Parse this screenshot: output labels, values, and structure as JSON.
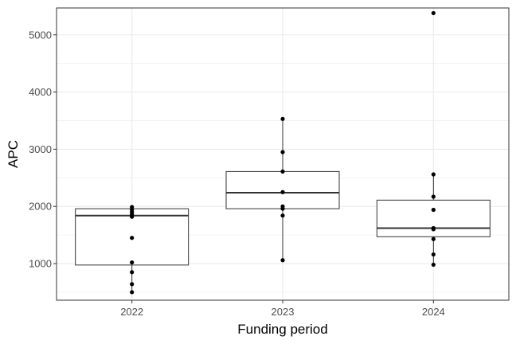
{
  "chart_data": {
    "type": "box",
    "title": "",
    "xlabel": "Funding period",
    "ylabel": "APC",
    "ylim": [
      360,
      5470
    ],
    "yticks": [
      1000,
      2000,
      3000,
      4000,
      5000
    ],
    "grid": true,
    "categories": [
      "2022",
      "2023",
      "2024"
    ],
    "boxes": [
      {
        "category": "2022",
        "whisker_low": 490,
        "q1": 975,
        "median": 1840,
        "q3": 1960,
        "whisker_high": 2000
      },
      {
        "category": "2023",
        "whisker_low": 1060,
        "q1": 1960,
        "median": 2240,
        "q3": 2610,
        "whisker_high": 3530
      },
      {
        "category": "2024",
        "whisker_low": 980,
        "q1": 1470,
        "median": 1620,
        "q3": 2110,
        "whisker_high": 2560
      }
    ],
    "points": [
      {
        "category": "2022",
        "values": [
          500,
          640,
          850,
          1020,
          1450,
          1820,
          1860,
          1900,
          1940,
          1990
        ]
      },
      {
        "category": "2023",
        "values": [
          1060,
          1840,
          1960,
          2000,
          2250,
          2610,
          2950,
          3530
        ]
      },
      {
        "category": "2024",
        "values": [
          980,
          1160,
          1430,
          1600,
          1620,
          1940,
          2170,
          2560,
          5380
        ]
      }
    ],
    "colors": {
      "panel_border": "#333333",
      "grid": "#ebebeb",
      "box_stroke": "#333333",
      "box_fill": "#ffffff",
      "point": "#000000",
      "tick_text": "#4d4d4d",
      "title_text": "#000000"
    }
  }
}
